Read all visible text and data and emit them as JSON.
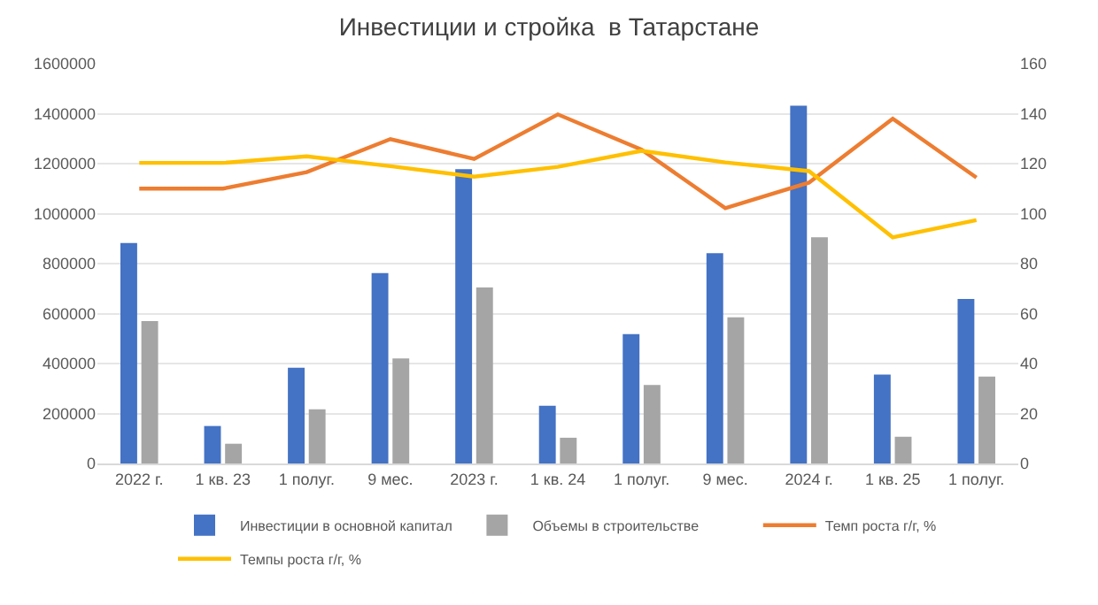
{
  "chart_data": {
    "type": "bar",
    "title": "Инвестиции и стройка  в Татарстане",
    "categories": [
      "2022 г.",
      "1 кв. 23",
      "1 полуг.",
      "9 мес.",
      "2023 г.",
      "1 кв. 24",
      "1 полуг.",
      "9 мес.",
      "2024 г.",
      "1 кв. 25",
      "1 полуг."
    ],
    "series": [
      {
        "name": "Инвестиции в основной капитал",
        "color": "#4472c4",
        "values": [
          882000,
          150000,
          383000,
          762000,
          1178000,
          231000,
          518000,
          842000,
          1432000,
          356000,
          658000
        ]
      },
      {
        "name": "Объемы в строительстве",
        "color": "#a5a5a5",
        "values": [
          570000,
          79000,
          217000,
          420000,
          704000,
          103000,
          314000,
          585000,
          905000,
          107000,
          348000
        ]
      },
      {
        "name": "Темп роста г/г, %",
        "type": "line",
        "axis": "y2",
        "color": "#ed7d31",
        "values": [
          110,
          110,
          116.6,
          129.8,
          121.9,
          139.7,
          125.6,
          102.2,
          112.4,
          138,
          114.4
        ]
      },
      {
        "name": "Темпы роста г/г, %",
        "type": "line",
        "axis": "y2",
        "color": "#ffc000",
        "values": [
          120.3,
          120.3,
          122.9,
          119,
          114.8,
          118.7,
          125.1,
          120.5,
          117,
          90.5,
          97.4
        ]
      }
    ],
    "ylim": [
      0,
      1600000
    ],
    "yticks": [
      0,
      200000,
      400000,
      600000,
      800000,
      1000000,
      1200000,
      1400000,
      1600000
    ],
    "y2lim": [
      0,
      160
    ],
    "y2ticks": [
      0,
      20,
      40,
      60,
      80,
      100,
      120,
      140,
      160
    ],
    "grid": "y",
    "legend": "bottom",
    "marker": "none",
    "line_style": "solid"
  }
}
